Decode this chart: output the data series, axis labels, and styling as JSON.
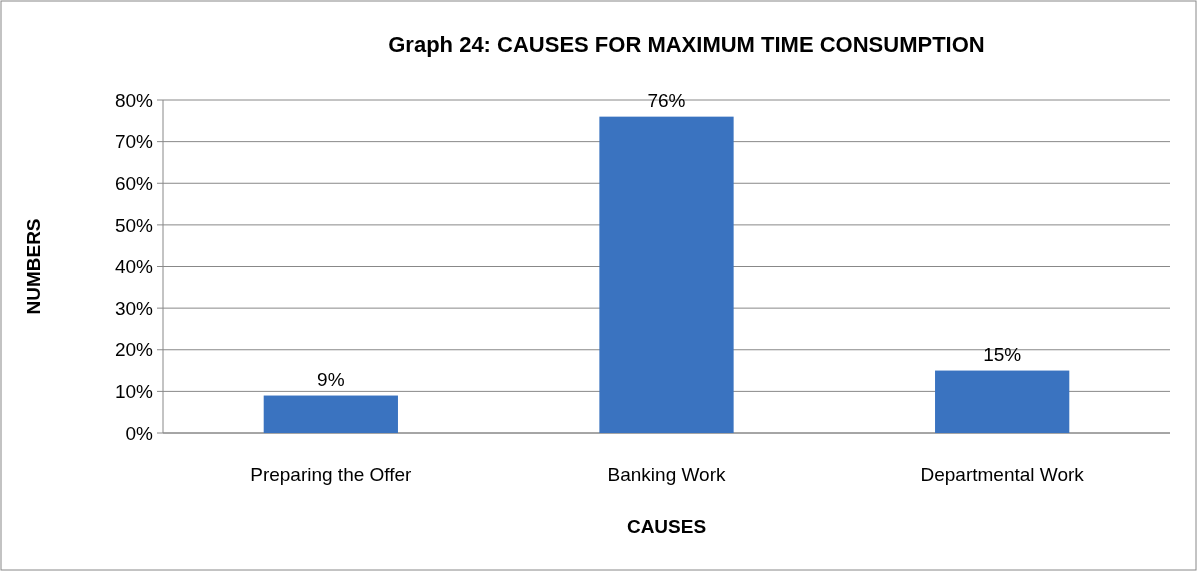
{
  "chart_data": {
    "type": "bar",
    "title": "Graph 24: CAUSES FOR MAXIMUM TIME CONSUMPTION",
    "xlabel": "CAUSES",
    "ylabel": "NUMBERS",
    "categories": [
      "Preparing the Offer",
      "Banking Work",
      "Departmental Work"
    ],
    "values": [
      9,
      76,
      15
    ],
    "value_labels": [
      "9%",
      "76%",
      "15%"
    ],
    "color": "#3a73c0",
    "ylim": [
      0,
      80
    ],
    "yticks": [
      {
        "value": 0,
        "label": "0%"
      },
      {
        "value": 10,
        "label": "10%"
      },
      {
        "value": 20,
        "label": "20%"
      },
      {
        "value": 30,
        "label": "30%"
      },
      {
        "value": 40,
        "label": "40%"
      },
      {
        "value": 50,
        "label": "50%"
      },
      {
        "value": 60,
        "label": "60%"
      },
      {
        "value": 70,
        "label": "70%"
      },
      {
        "value": 80,
        "label": "80%"
      }
    ],
    "grid": "y"
  }
}
